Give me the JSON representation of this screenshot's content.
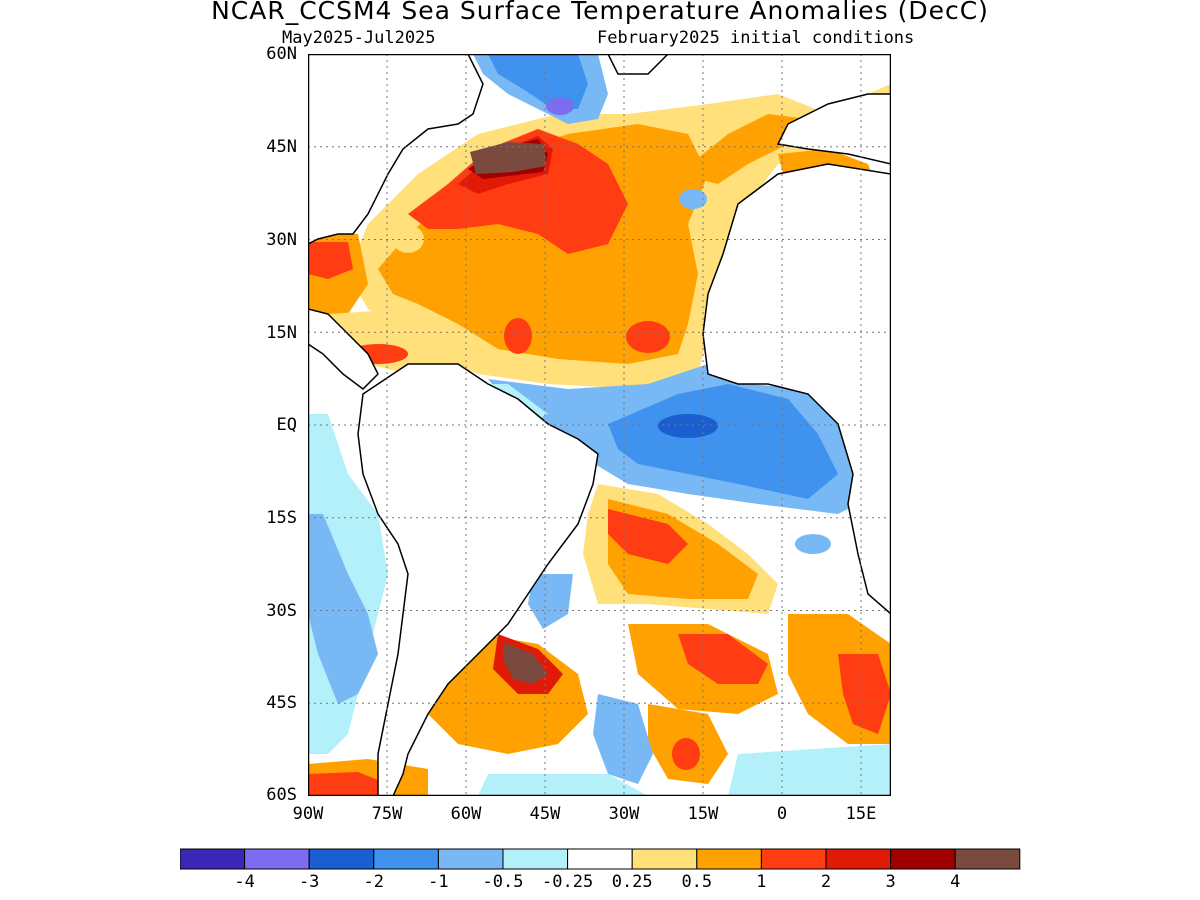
{
  "title": "NCAR_CCSM4 Sea Surface Temperature Anomalies (DecC)",
  "subtitle_left": "May2025-Jul2025",
  "subtitle_right": "February2025 initial conditions",
  "lat_labels": [
    "60N",
    "45N",
    "30N",
    "15N",
    "EQ",
    "15S",
    "30S",
    "45S",
    "60S"
  ],
  "lon_labels": [
    "90W",
    "75W",
    "60W",
    "45W",
    "30W",
    "15W",
    "0",
    "15E"
  ],
  "colorbar": {
    "colors": [
      "#3b27b6",
      "#7b6cf0",
      "#1a5fcf",
      "#3f92ee",
      "#78b9f5",
      "#b4f0fa",
      "#ffffff",
      "#ffe07a",
      "#ffa100",
      "#ff3c12",
      "#e01a06",
      "#a00000",
      "#7a4a3f"
    ],
    "labels": [
      "-4",
      "-3",
      "-2",
      "-1",
      "-0.5",
      "-0.25",
      "0.25",
      "0.5",
      "1",
      "2",
      "3",
      "4"
    ]
  },
  "map_features": {
    "warm_regions": [
      "North Atlantic mid-latitudes",
      "Gulf Stream off Newfoundland",
      "Caribbean",
      "South Atlantic subtropics",
      "Brazil-Malvinas confluence"
    ],
    "cool_regions": [
      "Labrador Sea",
      "Equatorial Atlantic / Gulf of Guinea",
      "Southeast Pacific coast"
    ]
  }
}
